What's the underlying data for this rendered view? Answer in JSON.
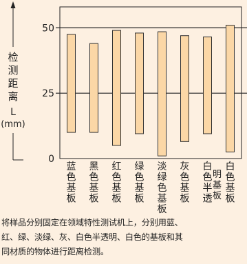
{
  "chart_data": {
    "type": "bar",
    "floating": true,
    "ylabel": "检测距离L(mm)",
    "ylim": [
      0,
      58
    ],
    "yticks": [
      0,
      25,
      50
    ],
    "reference_lines": [
      25,
      50
    ],
    "grid": false,
    "categories": [
      {
        "lines": [
          "蓝",
          "色",
          "基",
          "板"
        ]
      },
      {
        "lines": [
          "黑",
          "色",
          "基",
          "板"
        ]
      },
      {
        "lines": [
          "红",
          "色",
          "基",
          "板"
        ]
      },
      {
        "lines": [
          "绿",
          "色",
          "基",
          "板"
        ]
      },
      {
        "lines": [
          "淡",
          "绿",
          "色",
          "基",
          "板"
        ]
      },
      {
        "lines": [
          "灰",
          "色",
          "基",
          "板"
        ]
      },
      {
        "lines": [
          "白",
          "色",
          "半",
          "透"
        ],
        "side": "明基板"
      },
      {
        "lines": [
          "白",
          "色",
          "基",
          "板"
        ]
      }
    ],
    "series": [
      {
        "low": [
          10,
          10,
          5,
          9.5,
          1,
          6.5,
          9.5,
          2.5
        ],
        "high": [
          47.5,
          44,
          49,
          48,
          48.5,
          47,
          46.5,
          51
        ]
      }
    ],
    "colors": {
      "bar_fill": "#fbd7a6",
      "bar_stroke": "#333333",
      "plot_bg": "#fdf0e1",
      "line": "#222222"
    }
  },
  "caption": {
    "lines": [
      "将样品分别固定在领域特性测试机上，分别用蓝、",
      "红、绿、淡绿、灰、白色半透明、白色的基板和其",
      "同材质的物体进行距离检测。"
    ]
  }
}
